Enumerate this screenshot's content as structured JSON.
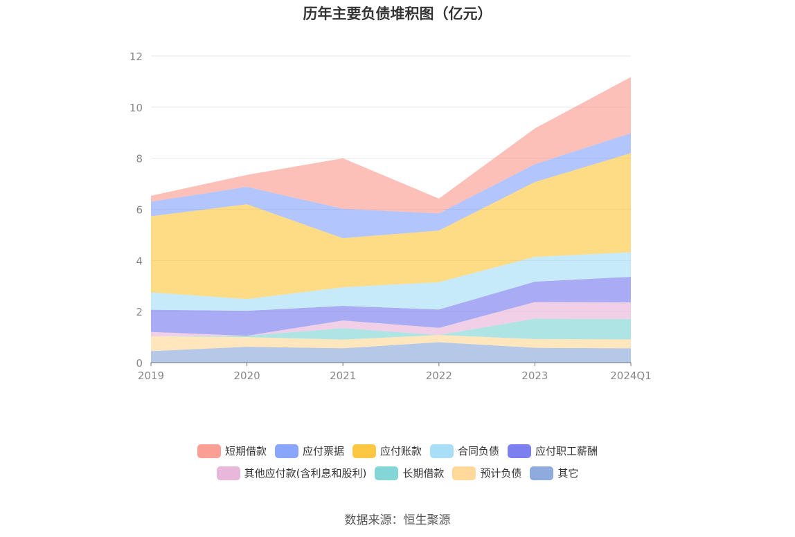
{
  "chart_data": {
    "type": "area",
    "title": "历年主要负债堆积图（亿元）",
    "source": "数据来源：恒生聚源",
    "x": [
      "2019",
      "2020",
      "2021",
      "2022",
      "2023",
      "2024Q1"
    ],
    "ylim": [
      0,
      12
    ],
    "yticks": [
      0,
      2,
      4,
      6,
      8,
      10,
      12
    ],
    "stacked": true,
    "grid": true,
    "legend_position": "bottom",
    "series": [
      {
        "name": "其它",
        "color": "#8faadc",
        "values": [
          0.45,
          0.62,
          0.56,
          0.8,
          0.58,
          0.56
        ]
      },
      {
        "name": "预计负债",
        "color": "#ffd89a",
        "values": [
          0.58,
          0.38,
          0.34,
          0.28,
          0.34,
          0.35
        ]
      },
      {
        "name": "长期借款",
        "color": "#84d6d6",
        "values": [
          0.0,
          0.05,
          0.45,
          0.0,
          0.8,
          0.8
        ]
      },
      {
        "name": "其他应付款(含利息和股利)",
        "color": "#e9b7da",
        "values": [
          0.17,
          0.0,
          0.3,
          0.28,
          0.65,
          0.65
        ]
      },
      {
        "name": "应付职工薪酬",
        "color": "#7b7ff0",
        "values": [
          0.87,
          0.98,
          0.57,
          0.72,
          0.8,
          1.0
        ]
      },
      {
        "name": "合同负债",
        "color": "#a9def8",
        "values": [
          0.68,
          0.46,
          0.73,
          1.07,
          0.97,
          0.96
        ]
      },
      {
        "name": "应付账款",
        "color": "#fdc744",
        "values": [
          2.98,
          3.71,
          1.92,
          2.02,
          2.93,
          3.88
        ]
      },
      {
        "name": "应付票据",
        "color": "#88a6fc",
        "values": [
          0.57,
          0.68,
          1.15,
          0.67,
          0.7,
          0.78
        ]
      },
      {
        "name": "短期借款",
        "color": "#fb9e94",
        "values": [
          0.23,
          0.47,
          1.98,
          0.58,
          1.4,
          2.2
        ]
      }
    ],
    "legend_rows": [
      [
        "短期借款",
        "应付票据",
        "应付账款",
        "合同负债",
        "应付职工薪酬"
      ],
      [
        "其他应付款(含利息和股利)",
        "长期借款",
        "预计负债",
        "其它"
      ]
    ]
  }
}
